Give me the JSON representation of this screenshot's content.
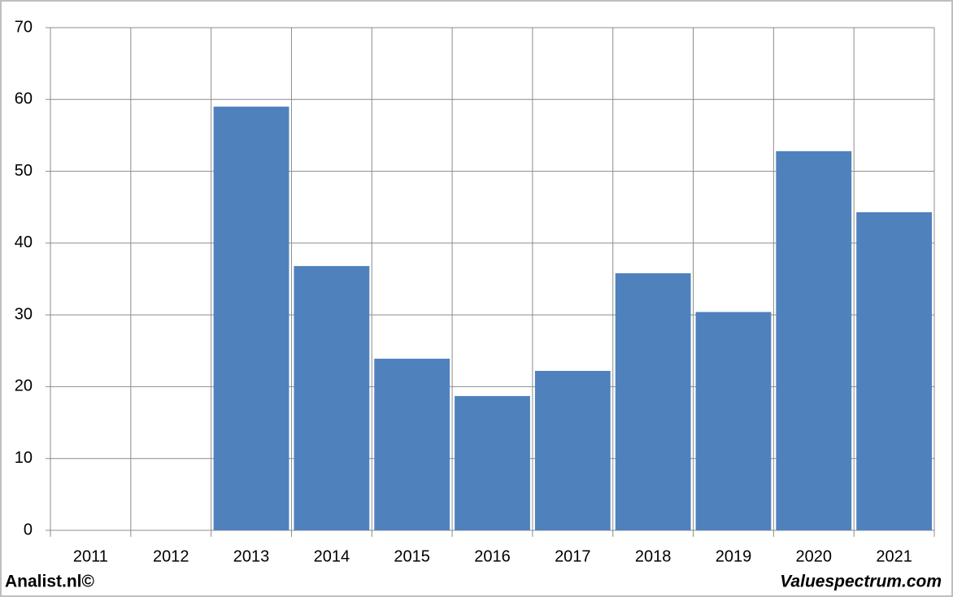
{
  "chart_data": {
    "type": "bar",
    "categories": [
      "2011",
      "2012",
      "2013",
      "2014",
      "2015",
      "2016",
      "2017",
      "2018",
      "2019",
      "2020",
      "2021"
    ],
    "values": [
      null,
      null,
      59,
      36.8,
      23.9,
      18.7,
      22.2,
      35.8,
      30.4,
      52.8,
      44.3
    ],
    "color": "#4f81bd",
    "ylim": [
      0,
      70
    ],
    "yticks": [
      0,
      10,
      20,
      30,
      40,
      50,
      60,
      70
    ],
    "grid": true
  },
  "footer": {
    "left": "Analist.nl©",
    "right": "Valuespectrum.com"
  }
}
